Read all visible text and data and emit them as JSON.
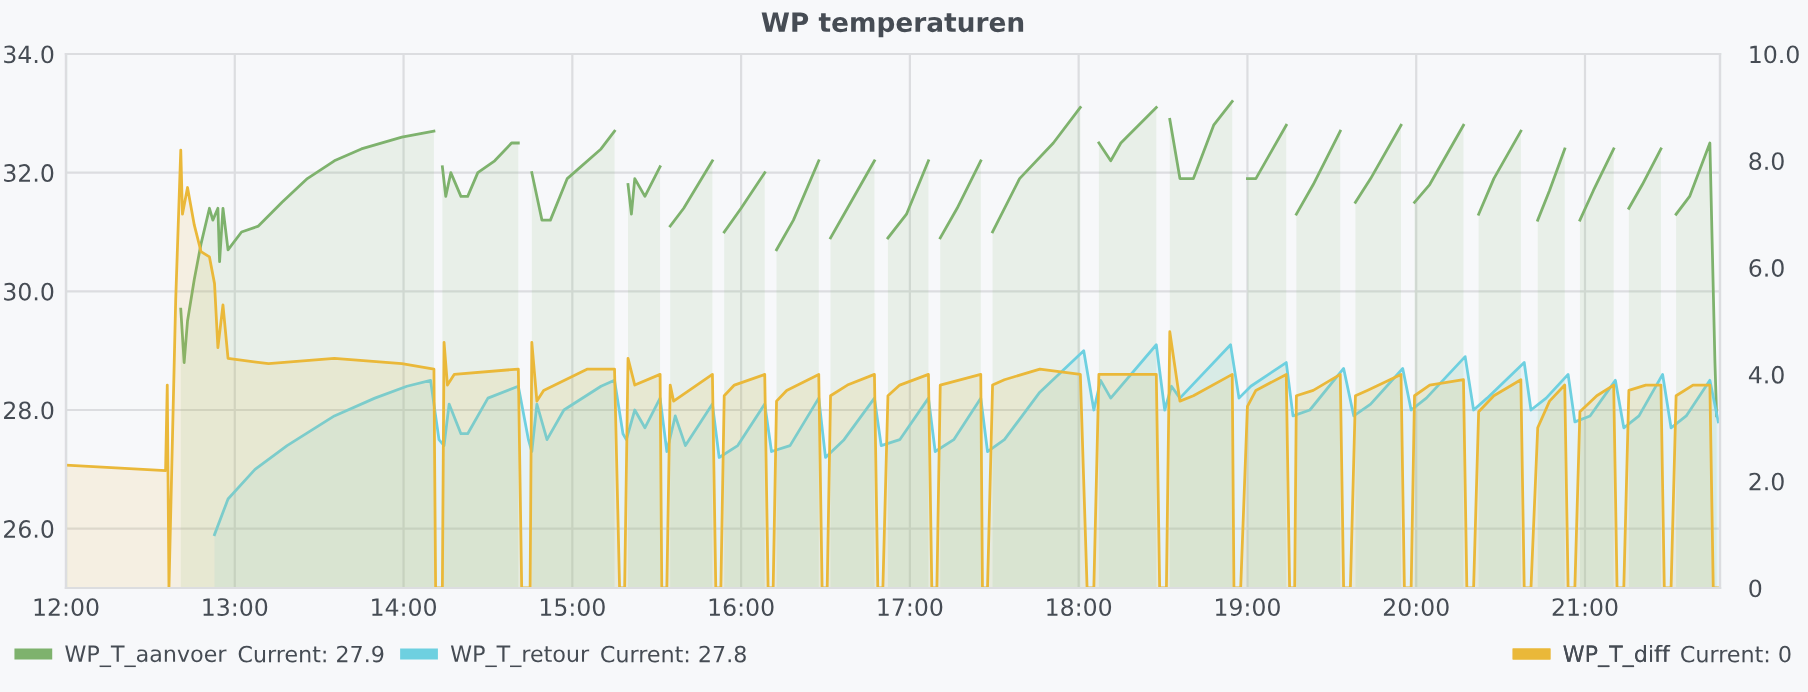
{
  "chart_data": {
    "type": "area",
    "title": "WP temperaturen",
    "xlim": [
      12,
      21.8
    ],
    "xticks": [
      {
        "value": 12,
        "label": "12:00"
      },
      {
        "value": 13,
        "label": "13:00"
      },
      {
        "value": 14,
        "label": "14:00"
      },
      {
        "value": 15,
        "label": "15:00"
      },
      {
        "value": 16,
        "label": "16:00"
      },
      {
        "value": 17,
        "label": "17:00"
      },
      {
        "value": 18,
        "label": "18:00"
      },
      {
        "value": 19,
        "label": "19:00"
      },
      {
        "value": 20,
        "label": "20:00"
      },
      {
        "value": 21,
        "label": "21:00"
      }
    ],
    "ylim": [
      25,
      34
    ],
    "yticks": [
      {
        "value": 26,
        "label": "26.0"
      },
      {
        "value": 28,
        "label": "28.0"
      },
      {
        "value": 30,
        "label": "30.0"
      },
      {
        "value": 32,
        "label": "32.0"
      },
      {
        "value": 34,
        "label": "34.0"
      }
    ],
    "y2lim": [
      0,
      10
    ],
    "y2ticks": [
      0,
      {
        "value": 2,
        "label": "2.0"
      },
      {
        "value": 4,
        "label": "4.0"
      },
      {
        "value": 6,
        "label": "6.0"
      },
      {
        "value": 8,
        "label": "8.0"
      },
      {
        "value": 10,
        "label": "10.0"
      }
    ],
    "grid": true,
    "legend": "bottom",
    "line_style": "solid",
    "marker": "none",
    "annotations": [
      "Current: 27.9",
      "Current: 27.8",
      "Current: 0"
    ],
    "series": [
      {
        "name": "WP_T_aanvoer",
        "color": "#7eb26d",
        "x": [
          12.68,
          12.7,
          12.72,
          12.76,
          12.8,
          12.85,
          12.87,
          12.9,
          12.91,
          12.93,
          12.96,
          13.04,
          13.14,
          13.28,
          13.43,
          13.59,
          13.75,
          13.99,
          14.18,
          14.2,
          14.23,
          14.25,
          14.28,
          14.34,
          14.38,
          14.44,
          14.54,
          14.64,
          14.68,
          14.74,
          14.76,
          14.82,
          14.87,
          14.97,
          15.17,
          15.25,
          15.29,
          15.33,
          15.35,
          15.37,
          15.43,
          15.52,
          15.54,
          15.58,
          15.66,
          15.83,
          15.86,
          15.9,
          16.0,
          16.14,
          16.17,
          16.21,
          16.31,
          16.46,
          16.5,
          16.53,
          16.63,
          16.79,
          16.83,
          16.87,
          16.98,
          17.11,
          17.14,
          17.18,
          17.28,
          17.42,
          17.46,
          17.49,
          17.65,
          17.85,
          18.01,
          18.05,
          18.12,
          18.19,
          18.25,
          18.46,
          18.5,
          18.54,
          18.6,
          18.68,
          18.8,
          18.91,
          18.95,
          19.0,
          19.05,
          19.23,
          19.26,
          19.29,
          19.39,
          19.55,
          19.59,
          19.64,
          19.73,
          19.91,
          19.95,
          19.99,
          20.08,
          20.28,
          20.32,
          20.37,
          20.46,
          20.62,
          20.66,
          20.72,
          20.79,
          20.88,
          20.92,
          20.97,
          21.05,
          21.17,
          21.21,
          21.26,
          21.34,
          21.45,
          21.49,
          21.54,
          21.62,
          21.74,
          21.77,
          21.78
        ],
        "values": [
          29.7,
          28.8,
          29.5,
          30.2,
          30.8,
          31.4,
          31.2,
          31.4,
          30.5,
          31.4,
          30.7,
          31.0,
          31.1,
          31.5,
          31.9,
          32.2,
          32.4,
          32.6,
          32.7,
          null,
          32.1,
          31.6,
          32.0,
          31.6,
          31.6,
          32.0,
          32.2,
          32.5,
          32.5,
          null,
          32.0,
          31.2,
          31.2,
          31.9,
          32.4,
          32.7,
          null,
          31.8,
          31.3,
          31.9,
          31.6,
          32.1,
          null,
          31.1,
          31.4,
          32.2,
          null,
          31.0,
          31.4,
          32.0,
          null,
          30.7,
          31.2,
          32.2,
          null,
          30.9,
          31.4,
          32.2,
          null,
          30.9,
          31.3,
          32.2,
          null,
          30.9,
          31.4,
          32.2,
          null,
          31.0,
          31.9,
          32.5,
          33.1,
          null,
          32.5,
          32.2,
          32.5,
          33.1,
          null,
          32.9,
          31.9,
          31.9,
          32.8,
          33.2,
          null,
          31.9,
          31.9,
          32.8,
          null,
          31.3,
          31.8,
          32.7,
          null,
          31.5,
          31.9,
          32.8,
          null,
          31.5,
          31.8,
          32.8,
          null,
          31.3,
          31.9,
          32.7,
          null,
          31.2,
          31.7,
          32.4,
          null,
          31.2,
          31.7,
          32.4,
          null,
          31.4,
          31.8,
          32.4,
          null,
          31.3,
          31.6,
          32.5,
          28.8,
          27.9
        ]
      },
      {
        "name": "WP_T_retour",
        "color": "#6ed0e0",
        "x": [
          12.88,
          12.96,
          13.12,
          13.31,
          13.59,
          13.83,
          14.02,
          14.16,
          14.21,
          14.24,
          14.27,
          14.34,
          14.38,
          14.5,
          14.68,
          14.74,
          14.76,
          14.79,
          14.85,
          14.95,
          15.17,
          15.25,
          15.3,
          15.32,
          15.37,
          15.43,
          15.52,
          15.56,
          15.61,
          15.67,
          15.83,
          15.87,
          15.98,
          16.14,
          16.18,
          16.29,
          16.46,
          16.5,
          16.61,
          16.79,
          16.83,
          16.94,
          17.11,
          17.15,
          17.26,
          17.42,
          17.46,
          17.56,
          17.77,
          18.03,
          18.09,
          18.13,
          18.19,
          18.46,
          18.51,
          18.55,
          18.6,
          18.9,
          18.95,
          19.02,
          19.23,
          19.27,
          19.37,
          19.57,
          19.63,
          19.73,
          19.92,
          19.97,
          20.06,
          20.29,
          20.34,
          20.42,
          20.64,
          20.68,
          20.77,
          20.9,
          20.94,
          21.03,
          21.18,
          21.23,
          21.32,
          21.46,
          21.51,
          21.6,
          21.74,
          21.79
        ],
        "values": [
          25.9,
          26.5,
          27.0,
          27.4,
          27.9,
          28.2,
          28.4,
          28.5,
          27.5,
          27.4,
          28.1,
          27.6,
          27.6,
          28.2,
          28.4,
          27.5,
          27.3,
          28.1,
          27.5,
          28.0,
          28.4,
          28.5,
          27.6,
          27.5,
          28.0,
          27.7,
          28.2,
          27.3,
          27.9,
          27.4,
          28.1,
          27.2,
          27.4,
          28.1,
          27.3,
          27.4,
          28.2,
          27.2,
          27.5,
          28.2,
          27.4,
          27.5,
          28.2,
          27.3,
          27.5,
          28.2,
          27.3,
          27.5,
          28.3,
          29.0,
          28.0,
          28.5,
          28.2,
          29.1,
          28.0,
          28.4,
          28.2,
          29.1,
          28.2,
          28.4,
          28.8,
          27.9,
          28.0,
          28.7,
          27.9,
          28.1,
          28.7,
          28.0,
          28.2,
          28.9,
          28.0,
          28.2,
          28.8,
          28.0,
          28.2,
          28.6,
          27.8,
          27.9,
          28.5,
          27.7,
          27.9,
          28.6,
          27.7,
          27.9,
          28.5,
          27.8
        ]
      },
      {
        "name": "WP_T_diff",
        "color": "#eab839",
        "axis": "y2",
        "x": [
          12.0,
          12.59,
          12.6,
          12.61,
          12.65,
          12.68,
          12.69,
          12.72,
          12.76,
          12.8,
          12.85,
          12.88,
          12.9,
          12.93,
          12.96,
          13.2,
          13.59,
          13.99,
          14.18,
          14.19,
          14.23,
          14.24,
          14.26,
          14.3,
          14.68,
          14.7,
          14.75,
          14.76,
          14.79,
          14.83,
          15.09,
          15.25,
          15.28,
          15.31,
          15.33,
          15.37,
          15.52,
          15.53,
          15.56,
          15.58,
          15.6,
          15.83,
          15.85,
          15.88,
          15.9,
          15.96,
          16.14,
          16.16,
          16.19,
          16.21,
          16.27,
          16.46,
          16.48,
          16.51,
          16.53,
          16.63,
          16.79,
          16.81,
          16.84,
          16.87,
          16.94,
          17.11,
          17.13,
          17.16,
          17.18,
          17.42,
          17.43,
          17.46,
          17.49,
          17.56,
          17.77,
          18.01,
          18.05,
          18.09,
          18.12,
          18.4,
          18.46,
          18.48,
          18.52,
          18.54,
          18.6,
          18.68,
          18.91,
          18.92,
          18.96,
          19.0,
          19.05,
          19.23,
          19.25,
          19.28,
          19.29,
          19.39,
          19.55,
          19.57,
          19.61,
          19.64,
          19.71,
          19.91,
          19.93,
          19.97,
          19.99,
          20.08,
          20.28,
          20.3,
          20.34,
          20.37,
          20.46,
          20.62,
          20.64,
          20.68,
          20.72,
          20.79,
          20.88,
          20.9,
          20.94,
          20.97,
          21.07,
          21.17,
          21.19,
          21.23,
          21.26,
          21.36,
          21.45,
          21.47,
          21.51,
          21.54,
          21.64,
          21.74,
          21.76,
          21.8
        ],
        "values": [
          2.3,
          2.2,
          3.8,
          0.0,
          5.4,
          8.2,
          7.0,
          7.5,
          6.8,
          6.3,
          6.2,
          5.7,
          4.5,
          5.3,
          4.3,
          4.2,
          4.3,
          4.2,
          4.1,
          0.0,
          0.0,
          4.6,
          3.8,
          4.0,
          4.1,
          0.0,
          0.0,
          4.6,
          3.5,
          3.7,
          4.1,
          4.1,
          0.0,
          0.0,
          4.3,
          3.8,
          4.0,
          0.0,
          0.0,
          3.8,
          3.5,
          4.0,
          0.0,
          0.0,
          3.6,
          3.8,
          4.0,
          0.0,
          0.0,
          3.5,
          3.7,
          4.0,
          0.0,
          0.0,
          3.6,
          3.8,
          4.0,
          0.0,
          0.0,
          3.6,
          3.8,
          4.0,
          0.0,
          0.0,
          3.8,
          4.0,
          0.0,
          0.0,
          3.8,
          3.9,
          4.1,
          4.0,
          0.0,
          0.0,
          4.0,
          4.0,
          4.0,
          0.0,
          0.0,
          4.8,
          3.5,
          3.6,
          4.0,
          0.0,
          0.0,
          3.4,
          3.7,
          4.0,
          0.0,
          0.0,
          3.6,
          3.7,
          4.0,
          0.0,
          0.0,
          3.6,
          3.7,
          4.0,
          0.0,
          0.0,
          3.6,
          3.8,
          3.9,
          0.0,
          0.0,
          3.3,
          3.6,
          3.9,
          0.0,
          0.0,
          3.0,
          3.5,
          3.8,
          0.0,
          0.0,
          3.3,
          3.6,
          3.8,
          0.0,
          0.0,
          3.7,
          3.8,
          3.8,
          0.0,
          0.0,
          3.6,
          3.8,
          3.8,
          0.0,
          0.0
        ]
      }
    ]
  }
}
